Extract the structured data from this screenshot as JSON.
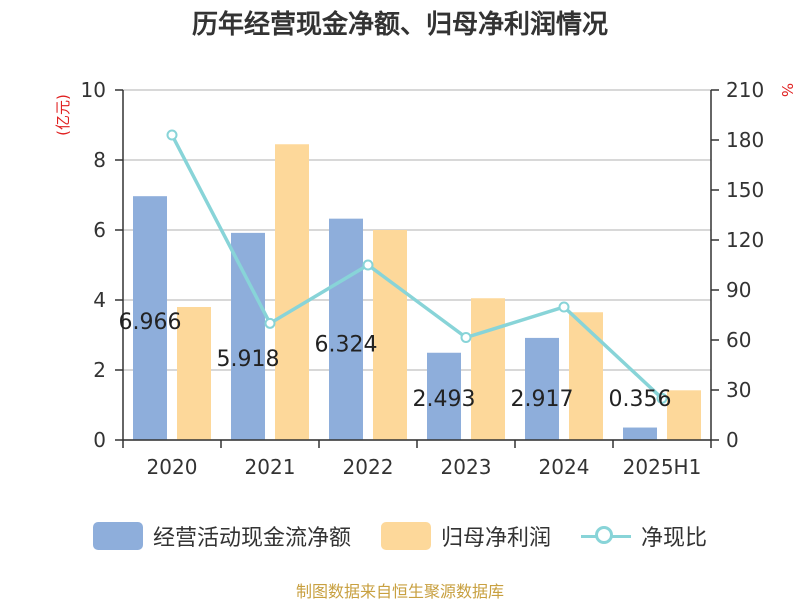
{
  "chart_data": {
    "type": "bar",
    "title": "历年经营现金净额、归母净利润情况",
    "categories": [
      "2020",
      "2021",
      "2022",
      "2023",
      "2024",
      "2025H1"
    ],
    "series": [
      {
        "name": "经营活动现金流净额",
        "type": "bar",
        "axis": "left",
        "color": "#8eaedb",
        "values": [
          6.966,
          5.918,
          6.324,
          2.493,
          2.917,
          0.356
        ],
        "labels": [
          "6.966",
          "5.918",
          "6.324",
          "2.493",
          "2.917",
          "0.356"
        ]
      },
      {
        "name": "归母净利润",
        "type": "bar",
        "axis": "left",
        "color": "#fdd89a",
        "values": [
          3.8,
          8.45,
          6.0,
          4.05,
          3.65,
          1.42
        ]
      },
      {
        "name": "净现比",
        "type": "line",
        "axis": "right",
        "color": "#88d4d8",
        "values": [
          183,
          70,
          105,
          61.5,
          79.8,
          25
        ]
      }
    ],
    "y_left": {
      "unit": "(亿元)",
      "ylim": [
        0,
        10
      ],
      "ticks": [
        "0",
        "2",
        "4",
        "6",
        "8",
        "10"
      ]
    },
    "y_right": {
      "unit": "%",
      "ylim": [
        0,
        210
      ],
      "ticks": [
        "0",
        "30",
        "60",
        "90",
        "120",
        "150",
        "180",
        "210"
      ]
    },
    "grid": true,
    "legend_position": "bottom"
  },
  "source": "制图数据来自恒生聚源数据库"
}
